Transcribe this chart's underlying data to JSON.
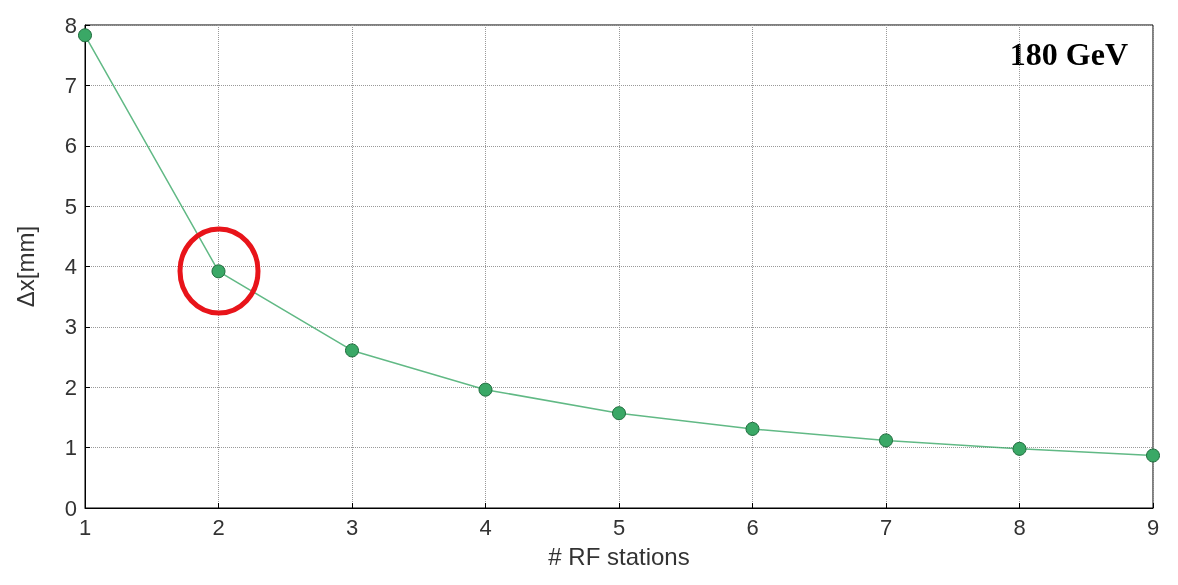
{
  "chart_data": {
    "type": "line",
    "xlabel": "# RF stations",
    "ylabel": "Δx[mm]",
    "annotations": [
      "180 GeV"
    ],
    "x": [
      1,
      2,
      3,
      4,
      5,
      6,
      7,
      8,
      9
    ],
    "series": [
      {
        "color": "#3aa866",
        "values": [
          7.83,
          3.92,
          2.61,
          1.96,
          1.57,
          1.31,
          1.12,
          0.98,
          0.87
        ]
      }
    ],
    "xlim": [
      1,
      9
    ],
    "xticks": [
      1,
      2,
      3,
      4,
      5,
      6,
      7,
      8,
      9
    ],
    "ylim": [
      0,
      8
    ],
    "yticks": [
      0,
      1,
      2,
      3,
      4,
      5,
      6,
      7,
      8
    ],
    "grid": true,
    "marker": "circle",
    "line_style": "solid"
  }
}
